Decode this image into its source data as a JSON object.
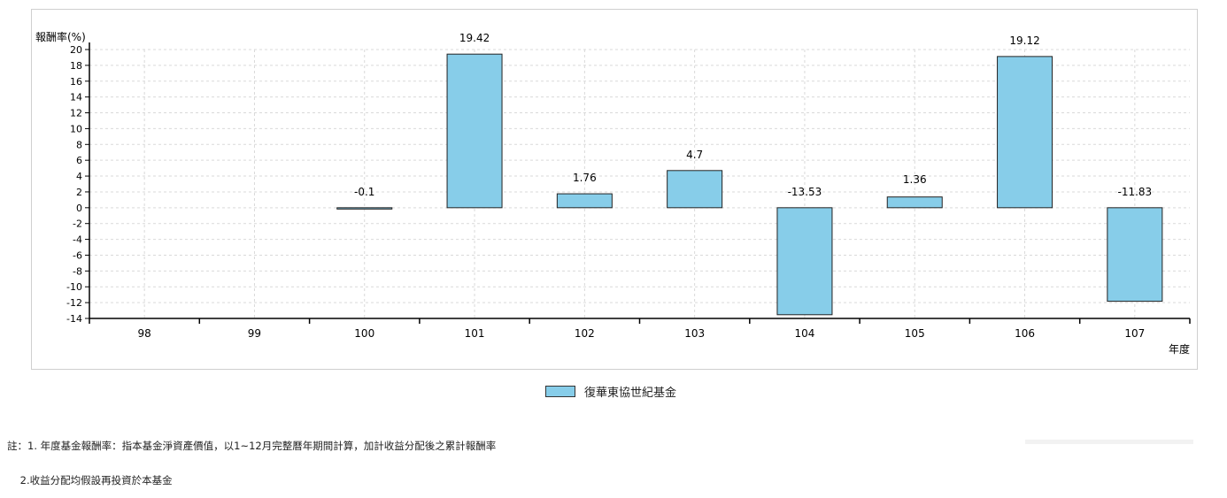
{
  "chart_data": {
    "type": "bar",
    "ylabel": "報酬率(%)",
    "xlabel": "年度",
    "categories": [
      "98",
      "99",
      "100",
      "101",
      "102",
      "103",
      "104",
      "105",
      "106",
      "107"
    ],
    "series": [
      {
        "name": "復華東協世紀基金",
        "values": [
          null,
          null,
          -0.1,
          19.42,
          1.76,
          4.7,
          -13.53,
          1.36,
          19.12,
          -11.83
        ],
        "labels": [
          "",
          "",
          "-0.1",
          "19.42",
          "1.76",
          "4.7",
          "-13.53",
          "1.36",
          "19.12",
          "-11.83"
        ]
      }
    ],
    "ylim": [
      -14,
      20
    ],
    "yticks": [
      20,
      18,
      16,
      14,
      12,
      10,
      8,
      6,
      4,
      2,
      0,
      -2,
      -4,
      -6,
      -8,
      -10,
      -12,
      -14
    ],
    "grid": true,
    "legend": "bottom-center",
    "colors": {
      "bar": "#87cde9",
      "bar_stroke": "#222222",
      "grid": "#d9d9d9"
    }
  },
  "notes": [
    "註：1. 年度基金報酬率：指本基金淨資產價值，以1~12月完整曆年期間計算，加計收益分配後之累計報酬率",
    "    2.收益分配均假設再投資於本基金"
  ]
}
